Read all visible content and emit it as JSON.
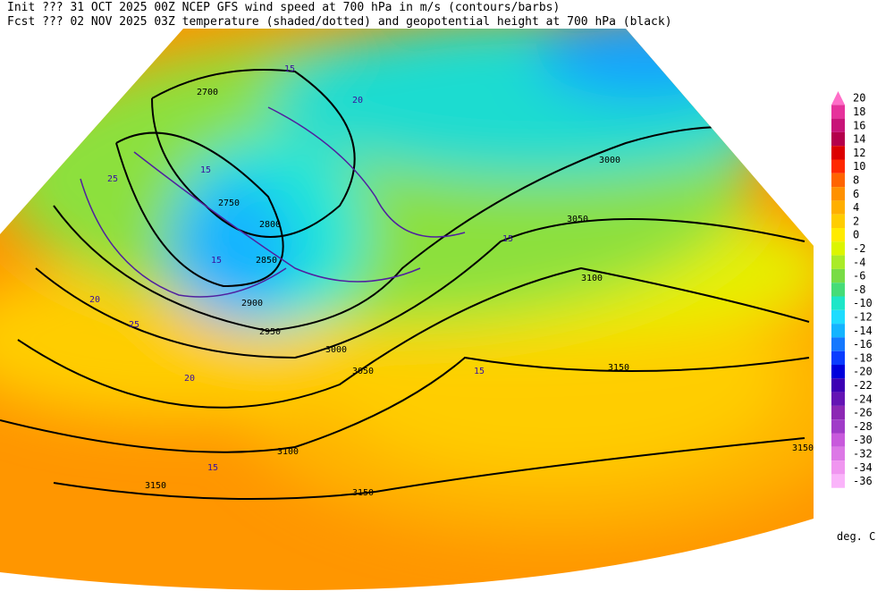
{
  "header": {
    "line1": "Init  ??? 31 OCT 2025 00Z  NCEP GFS wind speed at 700 hPa in m/s (contours/barbs)",
    "line2": "Fcst ??? 02 NOV 2025 03Z  temperature (shaded/dotted) and geopotential height at 700 hPa (black)"
  },
  "legend": {
    "unit": "deg. C",
    "entries": [
      {
        "label": 20,
        "color": "#ff6ec8"
      },
      {
        "label": 18,
        "color": "#e6329b"
      },
      {
        "label": 16,
        "color": "#c81478"
      },
      {
        "label": 14,
        "color": "#b4004b"
      },
      {
        "label": 12,
        "color": "#dc0000"
      },
      {
        "label": 10,
        "color": "#ff2800"
      },
      {
        "label": 8,
        "color": "#ff6400"
      },
      {
        "label": 6,
        "color": "#ff9100"
      },
      {
        "label": 4,
        "color": "#ffaf00"
      },
      {
        "label": 2,
        "color": "#ffcd00"
      },
      {
        "label": 0,
        "color": "#ffeb00"
      },
      {
        "label": -2,
        "color": "#dcf500"
      },
      {
        "label": -4,
        "color": "#aaeb28"
      },
      {
        "label": -6,
        "color": "#78dc46"
      },
      {
        "label": -8,
        "color": "#46dc78"
      },
      {
        "label": -10,
        "color": "#1ee6c8"
      },
      {
        "label": -12,
        "color": "#1edcff"
      },
      {
        "label": -14,
        "color": "#14b4ff"
      },
      {
        "label": -16,
        "color": "#1478ff"
      },
      {
        "label": -18,
        "color": "#0a3cff"
      },
      {
        "label": -20,
        "color": "#0000dc"
      },
      {
        "label": -22,
        "color": "#3c00b4"
      },
      {
        "label": -24,
        "color": "#6414b4"
      },
      {
        "label": -26,
        "color": "#8c28b4"
      },
      {
        "label": -28,
        "color": "#a03cc8"
      },
      {
        "label": -30,
        "color": "#c85adc"
      },
      {
        "label": -32,
        "color": "#dc78e6"
      },
      {
        "label": -34,
        "color": "#f096f0"
      },
      {
        "label": -36,
        "color": "#fab4fa"
      }
    ]
  },
  "map": {
    "contour_labels": [
      "2700",
      "2750",
      "2800",
      "2850",
      "2900",
      "2950",
      "3000",
      "3050",
      "3100",
      "3150",
      "3000",
      "3050",
      "3100",
      "3150",
      "3150",
      "3150"
    ],
    "wind_labels": [
      "15",
      "20",
      "25",
      "15",
      "20",
      "15",
      "25",
      "20",
      "15",
      "15",
      "15"
    ]
  }
}
